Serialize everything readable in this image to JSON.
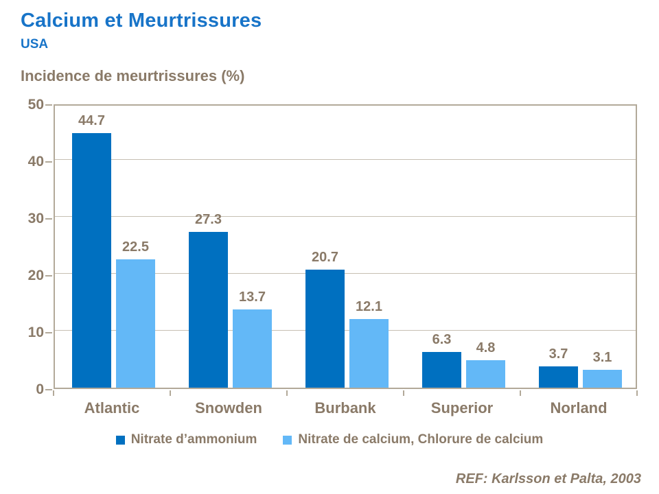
{
  "header": {
    "title": "Calcium et Meurtrissures",
    "subtitle": "USA"
  },
  "footer": {
    "reference": "REF: Karlsson et Palta, 2003"
  },
  "colors": {
    "title_blue": "#1874C8",
    "label_brown": "#8A7A68",
    "frame_tan": "#B2A999",
    "gridline_tan": "#C6BFB2",
    "series_dark_blue": "#0070C0",
    "series_light_blue": "#63B8F7"
  },
  "chart_data": {
    "type": "bar",
    "title": "Calcium et Meurtrissures",
    "subtitle": "USA",
    "ylabel": "Incidence de meurtrissures (%)",
    "xlabel": "",
    "categories": [
      "Atlantic",
      "Snowden",
      "Burbank",
      "Superior",
      "Norland"
    ],
    "series": [
      {
        "name": "Nitrate d’ammonium",
        "color": "#0070C0",
        "values": [
          44.7,
          27.3,
          20.7,
          6.3,
          3.7
        ]
      },
      {
        "name": "Nitrate de calcium, Chlorure de calcium",
        "color": "#63B8F7",
        "values": [
          22.5,
          13.7,
          12.1,
          4.8,
          3.1
        ]
      }
    ],
    "ylim": [
      0,
      50
    ],
    "yticks": [
      0,
      10,
      20,
      30,
      40,
      50
    ],
    "grid": true,
    "data_labels": true,
    "legend_position": "bottom",
    "reference": "REF: Karlsson et Palta, 2003"
  }
}
